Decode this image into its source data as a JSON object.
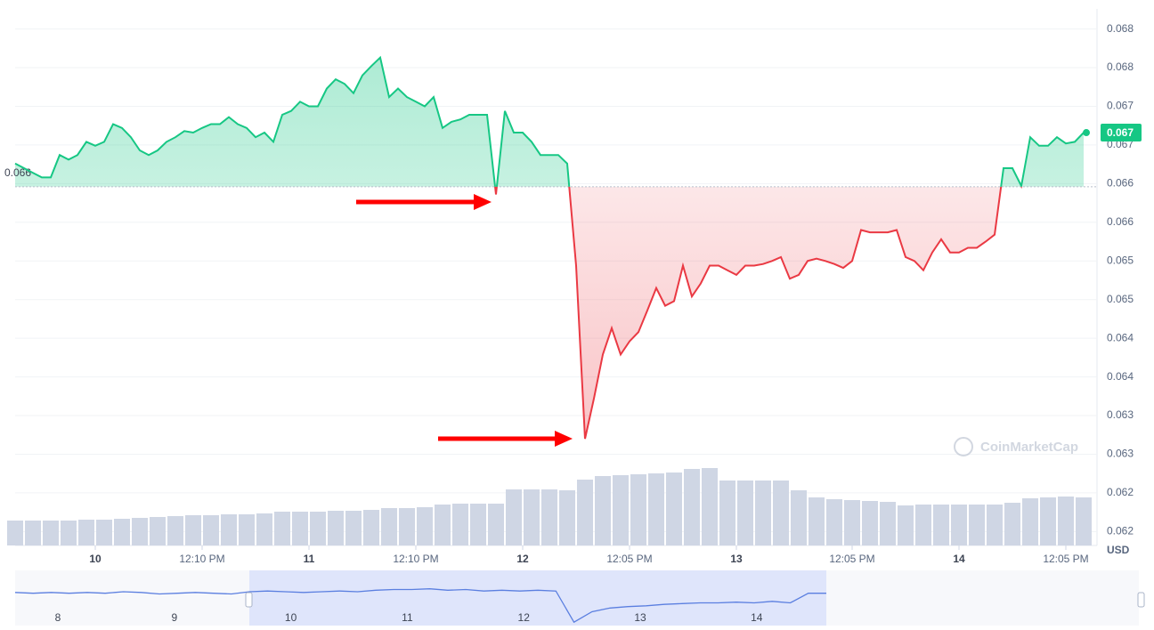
{
  "chart_data": {
    "type": "line",
    "currency": "USD",
    "watermark": "CoinMarketCap",
    "up_color": "#16c784",
    "down_color": "#ea3943",
    "grid": true,
    "ylim": [
      0.06132,
      0.06826
    ],
    "yticks": [
      {
        "value": 0.068,
        "label": "0.068"
      },
      {
        "value": 0.0675,
        "label": "0.068"
      },
      {
        "value": 0.067,
        "label": "0.067"
      },
      {
        "value": 0.0665,
        "label": "0.067"
      },
      {
        "value": 0.066,
        "label": "0.066"
      },
      {
        "value": 0.0655,
        "label": "0.066"
      },
      {
        "value": 0.065,
        "label": "0.065"
      },
      {
        "value": 0.0645,
        "label": "0.065"
      },
      {
        "value": 0.064,
        "label": "0.064"
      },
      {
        "value": 0.0635,
        "label": "0.064"
      },
      {
        "value": 0.063,
        "label": "0.063"
      },
      {
        "value": 0.0625,
        "label": "0.063"
      },
      {
        "value": 0.062,
        "label": "0.062"
      },
      {
        "value": 0.0615,
        "label": "0.062"
      }
    ],
    "xticks": [
      {
        "value": 9,
        "label": "10"
      },
      {
        "value": 21,
        "label": "12:10 PM"
      },
      {
        "value": 33,
        "label": "11"
      },
      {
        "value": 45,
        "label": "12:10 PM"
      },
      {
        "value": 57,
        "label": "12"
      },
      {
        "value": 69,
        "label": "12:05 PM"
      },
      {
        "value": 81,
        "label": "13"
      },
      {
        "value": 94,
        "label": "12:05 PM"
      },
      {
        "value": 106,
        "label": "14"
      },
      {
        "value": 118,
        "label": "12:05 PM"
      }
    ],
    "baseline": {
      "value": 0.06596,
      "label": "0.066"
    },
    "last_label": "0.067",
    "values": [
      0.06626,
      0.0662,
      0.06614,
      0.06608,
      0.06608,
      0.06637,
      0.06631,
      0.06637,
      0.06654,
      0.06649,
      0.06654,
      0.06677,
      0.06672,
      0.0666,
      0.06643,
      0.06637,
      0.06643,
      0.06654,
      0.0666,
      0.06668,
      0.06666,
      0.06672,
      0.06677,
      0.06677,
      0.06686,
      0.06677,
      0.06672,
      0.0666,
      0.06666,
      0.06654,
      0.06689,
      0.06694,
      0.06706,
      0.067,
      0.067,
      0.06723,
      0.06735,
      0.06729,
      0.06717,
      0.0674,
      0.06752,
      0.06763,
      0.06712,
      0.06723,
      0.06712,
      0.06706,
      0.067,
      0.06712,
      0.06672,
      0.0668,
      0.06683,
      0.06689,
      0.06689,
      0.06689,
      0.06586,
      0.06694,
      0.06666,
      0.06666,
      0.06654,
      0.06637,
      0.06637,
      0.06637,
      0.06626,
      0.06494,
      0.0627,
      0.06322,
      0.06379,
      0.06413,
      0.06379,
      0.06396,
      0.06408,
      0.06436,
      0.06465,
      0.06442,
      0.06448,
      0.06494,
      0.06454,
      0.06471,
      0.06494,
      0.06494,
      0.06488,
      0.06482,
      0.06494,
      0.06494,
      0.06496,
      0.065,
      0.06505,
      0.06477,
      0.06482,
      0.065,
      0.06503,
      0.065,
      0.06496,
      0.06491,
      0.065,
      0.0654,
      0.06537,
      0.06537,
      0.06537,
      0.0654,
      0.06505,
      0.065,
      0.06488,
      0.06511,
      0.06528,
      0.06511,
      0.06511,
      0.06517,
      0.06517,
      0.06525,
      0.06534,
      0.0662,
      0.0662,
      0.06597,
      0.0666,
      0.06649,
      0.06649,
      0.0666,
      0.06652,
      0.06654,
      0.06666
    ],
    "volume": {
      "color": "#cfd6e4",
      "ylim": [
        0,
        100
      ],
      "values": [
        28,
        28,
        28,
        28,
        29,
        29,
        30,
        31,
        32,
        33,
        34,
        34,
        35,
        35,
        36,
        38,
        38,
        38,
        39,
        39,
        40,
        42,
        42,
        43,
        46,
        47,
        47,
        47,
        63,
        63,
        63,
        62,
        74,
        78,
        79,
        80,
        81,
        82,
        86,
        87,
        73,
        73,
        73,
        73,
        62,
        54,
        52,
        51,
        50,
        49,
        45,
        46,
        46,
        46,
        46,
        46,
        48,
        53,
        54,
        55,
        54
      ]
    },
    "navigator": {
      "color": "#5b7fe0",
      "ylim": [
        0.0625,
        0.0685
      ],
      "labels": [
        "8",
        "9",
        "10",
        "11",
        "12",
        "13",
        "14"
      ],
      "values": [
        0.0666,
        0.0665,
        0.0666,
        0.0665,
        0.0666,
        0.0665,
        0.0667,
        0.0666,
        0.0664,
        0.0665,
        0.0666,
        0.0665,
        0.0664,
        0.0667,
        0.0668,
        0.0667,
        0.0666,
        0.0667,
        0.0668,
        0.0667,
        0.0669,
        0.067,
        0.067,
        0.0671,
        0.0669,
        0.067,
        0.0668,
        0.0669,
        0.0668,
        0.0669,
        0.0668,
        0.0626,
        0.064,
        0.0645,
        0.0647,
        0.0648,
        0.065,
        0.0651,
        0.0652,
        0.0652,
        0.0653,
        0.0652,
        0.0654,
        0.0652,
        0.0665,
        0.0665
      ]
    }
  }
}
